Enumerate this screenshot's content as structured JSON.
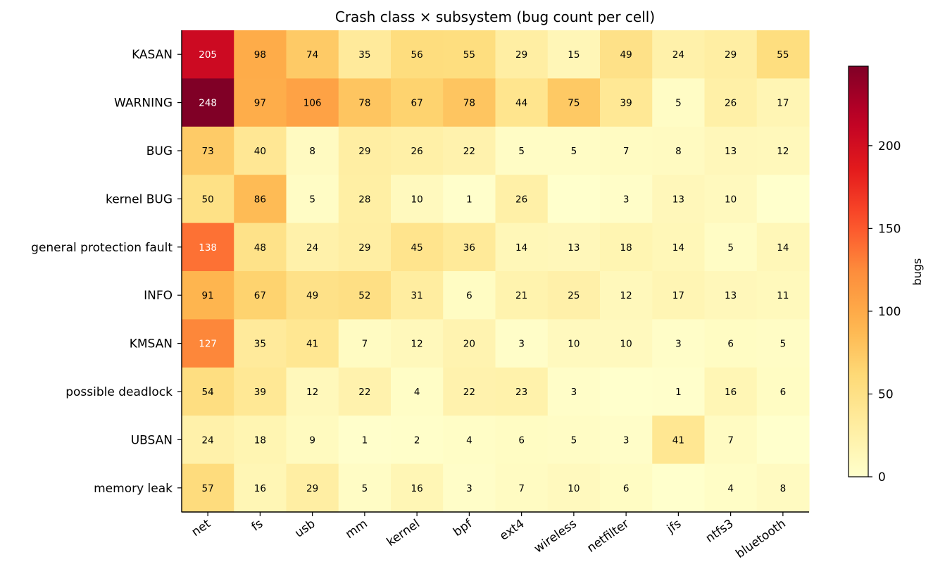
{
  "chart_data": {
    "type": "heatmap",
    "title": "Crash class × subsystem  (bug count per cell)",
    "xlabel": "",
    "ylabel": "",
    "columns": [
      "net",
      "fs",
      "usb",
      "mm",
      "kernel",
      "bpf",
      "ext4",
      "wireless",
      "netfilter",
      "jfs",
      "ntfs3",
      "bluetooth"
    ],
    "rows": [
      "KASAN",
      "WARNING",
      "BUG",
      "kernel BUG",
      "general protection fault",
      "INFO",
      "KMSAN",
      "possible deadlock",
      "UBSAN",
      "memory leak"
    ],
    "values": [
      [
        205,
        98,
        74,
        35,
        56,
        55,
        29,
        15,
        49,
        24,
        29,
        55
      ],
      [
        248,
        97,
        106,
        78,
        67,
        78,
        44,
        75,
        39,
        5,
        26,
        17
      ],
      [
        73,
        40,
        8,
        29,
        26,
        22,
        5,
        5,
        7,
        8,
        13,
        12
      ],
      [
        50,
        86,
        5,
        28,
        10,
        1,
        26,
        null,
        3,
        13,
        10,
        null
      ],
      [
        138,
        48,
        24,
        29,
        45,
        36,
        14,
        13,
        18,
        14,
        5,
        14
      ],
      [
        91,
        67,
        49,
        52,
        31,
        6,
        21,
        25,
        12,
        17,
        13,
        11
      ],
      [
        127,
        35,
        41,
        7,
        12,
        20,
        3,
        10,
        10,
        3,
        6,
        5
      ],
      [
        54,
        39,
        12,
        22,
        4,
        22,
        23,
        3,
        null,
        1,
        16,
        6
      ],
      [
        24,
        18,
        9,
        1,
        2,
        4,
        6,
        5,
        3,
        41,
        7,
        null
      ],
      [
        57,
        16,
        29,
        5,
        16,
        3,
        7,
        10,
        6,
        null,
        4,
        8
      ]
    ],
    "colorscale": "YlOrRd",
    "vmin": 0,
    "vmax": 248,
    "colorbar": {
      "label": "bugs",
      "ticks": [
        0,
        50,
        100,
        150,
        200
      ]
    }
  }
}
